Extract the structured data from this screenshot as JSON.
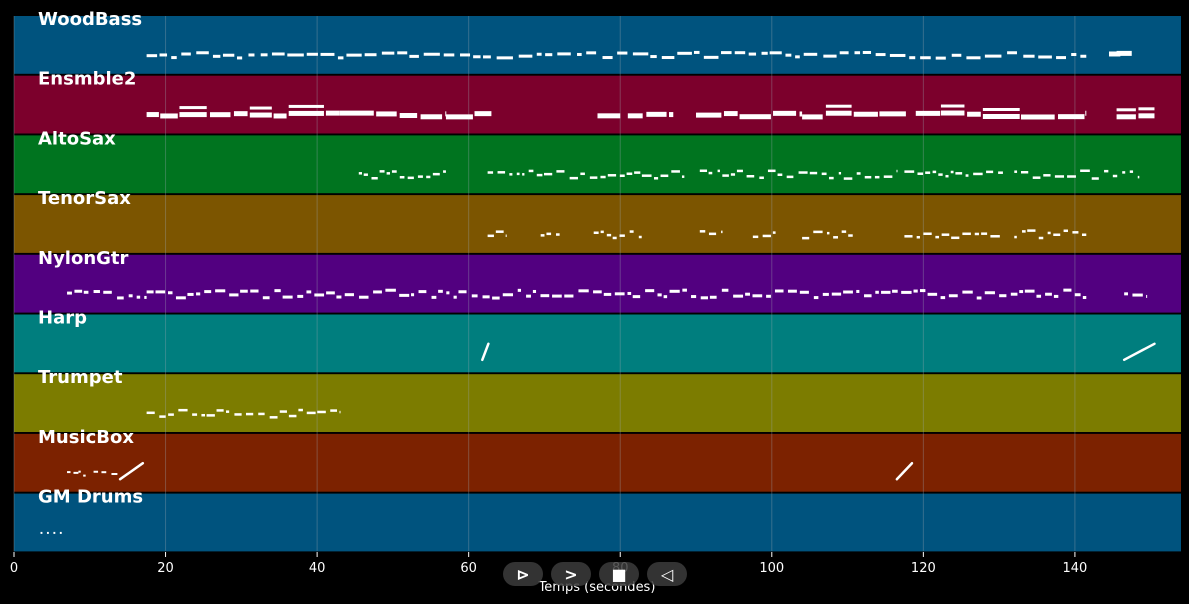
{
  "chart_data": {
    "type": "piano-roll",
    "xlabel": "Temps (secondes)",
    "xlim": [
      0,
      154
    ],
    "xticks": [
      0,
      20,
      40,
      60,
      80,
      100,
      120,
      140
    ],
    "grid": true,
    "tracks": [
      {
        "name": "WoodBass",
        "color": "#00537e",
        "segments": [
          [
            17.5,
            141.5
          ]
        ],
        "extras": [
          [
            144.5,
            146
          ],
          [
            145.5,
            147.5
          ]
        ],
        "style": "bass"
      },
      {
        "name": "Ensmble2",
        "color": "#7c002c",
        "segments": [
          [
            17.5,
            43
          ],
          [
            43,
            57
          ],
          [
            57,
            63
          ],
          [
            77,
            80
          ],
          [
            81,
            87
          ],
          [
            90,
            104
          ],
          [
            104,
            118
          ],
          [
            119,
            141.5
          ]
        ],
        "extras": [
          [
            145.5,
            150.5
          ]
        ],
        "style": "ens"
      },
      {
        "name": "AltoSax",
        "color": "#00741f",
        "segments": [
          [
            45.5,
            57
          ],
          [
            62.5,
            89
          ],
          [
            90.5,
            116.5
          ],
          [
            117.5,
            130.5
          ],
          [
            132,
            148.5
          ]
        ],
        "extras": [],
        "style": "sax"
      },
      {
        "name": "TenorSax",
        "color": "#7c5500",
        "segments": [
          [
            62.5,
            65
          ],
          [
            69.5,
            72
          ],
          [
            76.5,
            83
          ],
          [
            90.5,
            93.5
          ],
          [
            97.5,
            100.5
          ],
          [
            104,
            111
          ],
          [
            117.5,
            130.5
          ],
          [
            132,
            141.5
          ]
        ],
        "extras": [],
        "style": "sax"
      },
      {
        "name": "NylonGtr",
        "color": "#520080",
        "segments": [
          [
            7,
            17.5
          ],
          [
            17.5,
            141.5
          ]
        ],
        "extras": [
          [
            146.5,
            149.5
          ]
        ],
        "style": "gtr"
      },
      {
        "name": "Harp",
        "color": "#007e7e",
        "segments": [],
        "glissandi": [
          [
            61.8,
            62.6
          ],
          [
            146.5,
            150.5
          ]
        ],
        "extras": [],
        "style": "harp"
      },
      {
        "name": "Trumpet",
        "color": "#7c7c00",
        "segments": [
          [
            17.5,
            43
          ]
        ],
        "extras": [],
        "style": "sax"
      },
      {
        "name": "MusicBox",
        "color": "#7c2200",
        "segments": [
          [
            7,
            8.5
          ],
          [
            8.5,
            9.5
          ],
          [
            10.5,
            14
          ]
        ],
        "glissandi": [
          [
            14,
            17
          ],
          [
            116.5,
            118.5
          ]
        ],
        "extras": [],
        "style": "box"
      },
      {
        "name": "GM Drums",
        "color": "#00537e",
        "segments": [
          [
            3.5,
            6.5
          ]
        ],
        "extras": [],
        "style": "drums"
      }
    ]
  },
  "controls": {
    "play": "⊳",
    "next": ">",
    "stop": "■",
    "prev": "◁"
  },
  "colors": {
    "background": "#000000",
    "notes": "#ffffff",
    "grid": "#9aa7b0"
  }
}
